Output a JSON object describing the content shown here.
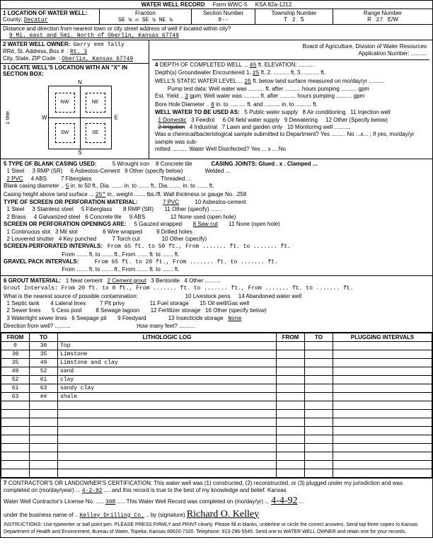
{
  "form": {
    "title": "WATER WELL RECORD",
    "formNo": "Form WWC-5",
    "ksa": "KSA 82a-1212"
  },
  "loc": {
    "county_label": "LOCATION OF WATER WELL:",
    "county_field": "County:",
    "county": "Decatur",
    "fraction_label": "Fraction",
    "fraction": "SE ¼  ☒ SE ¼  NE ¼",
    "section_label": "Section Number",
    "section": "8--",
    "township_label": "Township Number",
    "township_t": "T",
    "township": "2",
    "township_s": "S",
    "range_label": "Range Number",
    "range_r": "R",
    "range": "27",
    "range_ew": "E/W",
    "dist_label": "Distance and direction from nearest town or city street address of well if located within city?",
    "dist": "9 Mi. east and 5mi. North of Oberlin, Kansas 67749"
  },
  "owner": {
    "label": "WATER WELL OWNER:",
    "name_strike": "Gerry ### Tally",
    "addr_label": "RR#, St. Address, Box #",
    "addr": "Rt. 3",
    "city_label": "City, State, ZIP Code",
    "city": "Oberlin, Kansas 67749",
    "board": "Board of Agriculture, Division of Water Resources",
    "app_label": "Application Number:"
  },
  "sec3": {
    "label": "LOCATE WELL'S LOCATION WITH AN \"X\" IN SECTION BOX:",
    "n": "N",
    "s": "S",
    "e": "E",
    "w": "W",
    "nw": "NW",
    "ne": "NE",
    "sw": "SW",
    "se": "SE",
    "mile": "1 Mile"
  },
  "sec4": {
    "depth_label": "DEPTH OF COMPLETED WELL",
    "depth": "65",
    "depth_unit": "ft.  ELEVATION:",
    "gw_label": "Depth(s) Groundwater Encountered  1.",
    "gw1": "25",
    "gw_rest": "ft,   2. .......... ft,   3. .......... ft.",
    "static_label": "WELL'S STATIC WATER LEVEL",
    "static": "25",
    "static_rest": "ft. below land surface measured on mo/day/yr ..........",
    "pump_label": "Pump test data:  Well water was .......... ft. after .......... hours pumping .......... gpm",
    "yield_label": "Est. Yield",
    "yield": "3",
    "yield_rest": "gpm;  Well water was .......... ft. after .......... hours pumping .......... gpm",
    "bore_label": "Bore Hole Diameter",
    "bore": "8",
    "bore_rest": "in. to .......... ft. and .......... in. to .......... ft.",
    "use_label": "WELL WATER TO BE USED AS:",
    "use1": "1 Domestic",
    "use2": "2 Irrigation",
    "use3": "3 Feedlot",
    "use4": "4 Industrial",
    "use5": "5 Public water supply",
    "use6": "6 Oil field water supply",
    "use7": "7 Lawn and garden only",
    "use8": "8 Air conditioning",
    "use9": "9 Dewatering",
    "use10": "10 Monitoring well",
    "use11": "11 Injection well",
    "use12": "12 Other (Specify below)",
    "chem_label": "Was a chemical/bacteriological sample submitted to Department? Yes ......... No ...x... ; If yes, mo/day/yr sample was sub-",
    "chem_rest": "mitted ..........   Water Well Disinfected?  Yes ... x ...  No"
  },
  "sec5": {
    "label": "TYPE OF BLANK CASING USED:",
    "c1": "1 Steel",
    "c2": "2 PVC",
    "c3": "3 RMP (SR)",
    "c4": "4 ABS",
    "c5": "5 Wrought iron",
    "c6": "6 Asbestos-Cement",
    "c7": "7 Fiberglass",
    "c8": "8 Concrete tile",
    "c9": "9 Other (specify below)",
    "joints": "CASING JOINTS: Glued . x . Clamped ...",
    "joints2": "Welded ... ",
    "joints3": "Threaded ...",
    "blank": "Blank casing diameter",
    "blank_v": "5",
    "blank_rest": "in. to  50  ft., Dia. ....... in. to ....... ft., Dia. ....... in. to ....... ft.",
    "height": "Casing height above land surface",
    "height_v": "25\"",
    "height_rest": "in., weight ....... lbs./ft.  Wall thickness or gauge No.  .258",
    "perf_label": "TYPE OF SCREEN OR PERFORATION MATERIAL:",
    "p1": "1 Steel",
    "p2": "2 Brass",
    "p3": "3 Stainless steel",
    "p4": "4 Galvanized steel",
    "p5": "5 Fiberglass",
    "p6": "6 Concrete tile",
    "p7": "7 PVC",
    "p8": "8 RMP (SR)",
    "p9": "9 ABS",
    "p10": "10 Asbestos-cement",
    "p11": "11 Other (specify) .......",
    "p12": "12 None used (open hole)",
    "open_label": "SCREEN OR PERFORATION OPENINGS ARE:",
    "o1": "1 Continuous slot",
    "o2": "2 Louvered shutter",
    "o3": "3 Mil slot",
    "o4": "4 Key punched",
    "o5": "5 Gauzed wrapped",
    "o6": "6 Wire wrapped",
    "o7": "7 Torch cut",
    "o8": "8 Saw cut",
    "o9": "9 Drilled holes",
    "o10": "10 Other (specify)",
    "o11": "11 None (open hole)",
    "sp_label": "SCREEN-PERFORATED INTERVALS:",
    "sp1": "From  65  ft. to  50  ft., From ....... ft. to ....... ft.",
    "sp2": "From ....... ft. to ....... ft., From ....... ft. to ....... ft.",
    "gp_label": "GRAVEL PACK INTERVALS:",
    "gp1": "From  65  ft. to  20  ft., From ....... ft. to ....... ft.",
    "gp2": "From ....... ft. to ....... ft., From ....... ft. to ....... ft."
  },
  "sec6": {
    "label": "GROUT MATERIAL:",
    "g1": "1 Neat cement",
    "g2": "2 Cement grout",
    "g3": "3 Bentonite",
    "g4": "4 Other",
    "gi": "Grout Intervals:   From  20  ft. to  0  ft., From ....... ft. to ....... ft., From ....... ft. to ....... ft.",
    "src_label": "What is the nearest source of possible contamination:",
    "s1": "1 Septic tank",
    "s2": "2 Sewer lines",
    "s3": "3 Watertight sewer lines",
    "s4": "4 Lateral lines",
    "s5": "5 Cess pool",
    "s6": "6 Seepage pit",
    "s7": "7 Pit privy",
    "s8": "8 Sewage lagoon",
    "s9": "9 Feedyard",
    "s10": "10 Livestock pens",
    "s11": "11 Fuel storage",
    "s12": "12 Fertilizer storage",
    "s13": "13 Insecticide storage",
    "s14": "14 Abandoned water well",
    "s15": "15 Oil well/Gas well",
    "s16": "16 Other (specify below)",
    "s13v": "None",
    "dir": "Direction from well? ..........",
    "feet": "How many feet? .........."
  },
  "log": {
    "h_from": "FROM",
    "h_to": "TO",
    "h_log": "LITHOLOGIC LOG",
    "h_plug": "PLUGGING INTERVALS",
    "rows": [
      {
        "from": "0",
        "to": "30",
        "log": "Top"
      },
      {
        "from": "30",
        "to": "35",
        "log": "Limstone"
      },
      {
        "from": "35",
        "to": "49",
        "log": "Limstone and clay"
      },
      {
        "from": "49",
        "to": "52",
        "log": "sand"
      },
      {
        "from": "52",
        "to": "61",
        "log": "clay"
      },
      {
        "from": "61",
        "to": "63",
        "log": "sandy clay"
      },
      {
        "from": "63",
        "to": "##",
        "log": "shale"
      }
    ]
  },
  "sec7": {
    "cert": "CONTRACTOR'S OR LANDOWNER'S CERTIFICATION: This water well was (1) constructed, (2) reconstructed, or (3) plugged under my jurisdiction and was",
    "date_label": "completed on (mo/day/year)",
    "date": "4-2-92",
    "rest1": "and this record is true to the best of my knowledge and belief. Kansas",
    "lic_label": "Water Well Contractor's License No.",
    "lic": "398",
    "rest2": "This Water Well Record was completed on (mo/day/yr)",
    "date2": "4-4-92",
    "biz_label": "under the business name of",
    "biz": "Kelley Drilling Co.",
    "sig_label": "by (signature)",
    "sig": "Richard O. Kelley",
    "instr": "INSTRUCTIONS: Use typewriter or ball point pen. PLEASE PRESS FIRMLY and PRINT clearly. Please fill in blanks, underline or circle the correct answers. Send top three copies to Kansas Department of Health and Environment, Bureau of Water, Topeka, Kansas 66620-7320. Telephone: 913-296-5545. Send one to WATER WELL OWNER and retain one for your records."
  }
}
